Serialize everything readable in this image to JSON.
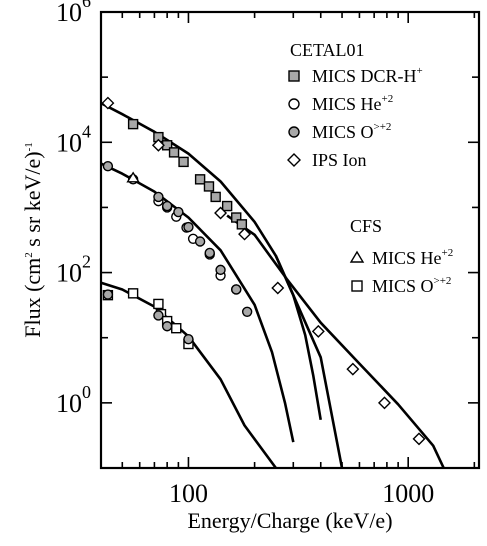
{
  "chart_data": {
    "type": "scatter",
    "xscale": "log",
    "yscale": "log",
    "xlim": [
      40,
      2100
    ],
    "ylim": [
      0.1,
      1000000
    ],
    "xlabel": "Energy/Charge (keV/e)",
    "ylabel": {
      "prefix": "Flux (cm",
      "sup1": "2",
      "middle": " s sr keV/e)",
      "sup2": "-1"
    },
    "x_ticks": [
      {
        "value": 100,
        "label": "100"
      },
      {
        "value": 1000,
        "label": "1000"
      }
    ],
    "y_ticks": [
      {
        "value": 1,
        "base": "10",
        "exp": "0"
      },
      {
        "value": 100,
        "base": "10",
        "exp": "2"
      },
      {
        "value": 10000,
        "base": "10",
        "exp": "4"
      },
      {
        "value": 1000000,
        "base": "10",
        "exp": "6"
      }
    ],
    "grid": false,
    "legend_groups": [
      {
        "title": "CETAL01",
        "entries": [
          {
            "series": "mics_dcr_h",
            "text": "MICS DCR-H",
            "sup": "+"
          },
          {
            "series": "mics_he_cetal",
            "text": "MICS He",
            "sup": "+2"
          },
          {
            "series": "mics_o_cetal",
            "text": "MICS O",
            "sup": ">+2"
          },
          {
            "series": "ips_ion",
            "text": "IPS Ion",
            "sup": ""
          }
        ]
      },
      {
        "title": "CFS",
        "entries": [
          {
            "series": "mics_he_cfs",
            "text": "MICS He",
            "sup": "+2"
          },
          {
            "series": "mics_o_cfs",
            "text": "MICS O",
            "sup": ">+2"
          }
        ]
      }
    ],
    "legend_placement": "right",
    "series": [
      {
        "id": "mics_dcr_h",
        "marker": "square-filled",
        "points": [
          [
            56,
            19000
          ],
          [
            73,
            12000
          ],
          [
            80,
            9000
          ],
          [
            86,
            7000
          ],
          [
            95,
            5000
          ],
          [
            113,
            2700
          ],
          [
            124,
            2100
          ],
          [
            133,
            1450
          ],
          [
            150,
            1050
          ],
          [
            165,
            700
          ],
          [
            175,
            550
          ]
        ]
      },
      {
        "id": "ips_ion",
        "marker": "diamond",
        "points": [
          [
            43,
            40000
          ],
          [
            73,
            9000
          ],
          [
            140,
            820
          ],
          [
            180,
            390
          ],
          [
            255,
            58
          ],
          [
            390,
            12.5
          ],
          [
            560,
            3.3
          ],
          [
            780,
            1
          ],
          [
            1120,
            0.28
          ]
        ]
      },
      {
        "id": "mics_he_cetal",
        "marker": "circle-open",
        "points": [
          [
            56,
            2700
          ],
          [
            73,
            1250
          ],
          [
            80,
            1000
          ],
          [
            88,
            720
          ],
          [
            98,
            490
          ],
          [
            105,
            330
          ],
          [
            125,
            190
          ],
          [
            140,
            90
          ],
          [
            165,
            55
          ]
        ]
      },
      {
        "id": "mics_o_cetal",
        "marker": "circle-filled",
        "points": [
          [
            43,
            4300
          ],
          [
            73,
            1450
          ],
          [
            80,
            1050
          ],
          [
            90,
            850
          ],
          [
            100,
            500
          ],
          [
            113,
            300
          ],
          [
            125,
            200
          ],
          [
            140,
            110
          ],
          [
            165,
            55
          ],
          [
            185,
            25
          ]
        ]
      },
      {
        "id": "mics_he_cfs",
        "marker": "triangle-open",
        "points": [
          [
            56,
            2800
          ]
        ]
      },
      {
        "id": "mics_o_cfs",
        "marker": "square-open",
        "points": [
          [
            43,
            45
          ],
          [
            56,
            48
          ],
          [
            73,
            33
          ],
          [
            75,
            23
          ],
          [
            80,
            18
          ],
          [
            88,
            14
          ],
          [
            100,
            8
          ]
        ]
      },
      {
        "id": "mics_o_low_filled",
        "marker": "circle-filled",
        "points": [
          [
            43,
            46
          ],
          [
            73,
            22
          ],
          [
            80,
            15
          ],
          [
            100,
            9.5
          ]
        ]
      }
    ],
    "fit_curves": [
      [
        [
          40,
          40000
        ],
        [
          50,
          27000
        ],
        [
          70,
          14500
        ],
        [
          100,
          6700
        ],
        [
          140,
          2500
        ],
        [
          200,
          600
        ],
        [
          250,
          180
        ],
        [
          300,
          45
        ],
        [
          340,
          11
        ],
        [
          370,
          2.6
        ],
        [
          400,
          0.55
        ]
      ],
      [
        [
          150,
          750
        ],
        [
          200,
          380
        ],
        [
          280,
          80
        ],
        [
          400,
          17
        ],
        [
          600,
          4
        ],
        [
          900,
          0.95
        ],
        [
          1300,
          0.22
        ],
        [
          1450,
          0.1
        ]
      ],
      [
        [
          40,
          4700
        ],
        [
          50,
          3300
        ],
        [
          70,
          1750
        ],
        [
          100,
          700
        ],
        [
          140,
          220
        ],
        [
          200,
          32
        ],
        [
          240,
          6
        ],
        [
          275,
          1
        ],
        [
          300,
          0.25
        ]
      ],
      [
        [
          40,
          70
        ],
        [
          50,
          55
        ],
        [
          70,
          30
        ],
        [
          100,
          10.5
        ],
        [
          140,
          2.3
        ],
        [
          180,
          0.45
        ],
        [
          250,
          0.1
        ]
      ],
      [
        [
          250,
          180
        ],
        [
          300,
          45
        ],
        [
          400,
          5
        ],
        [
          500,
          0.1
        ]
      ]
    ]
  }
}
